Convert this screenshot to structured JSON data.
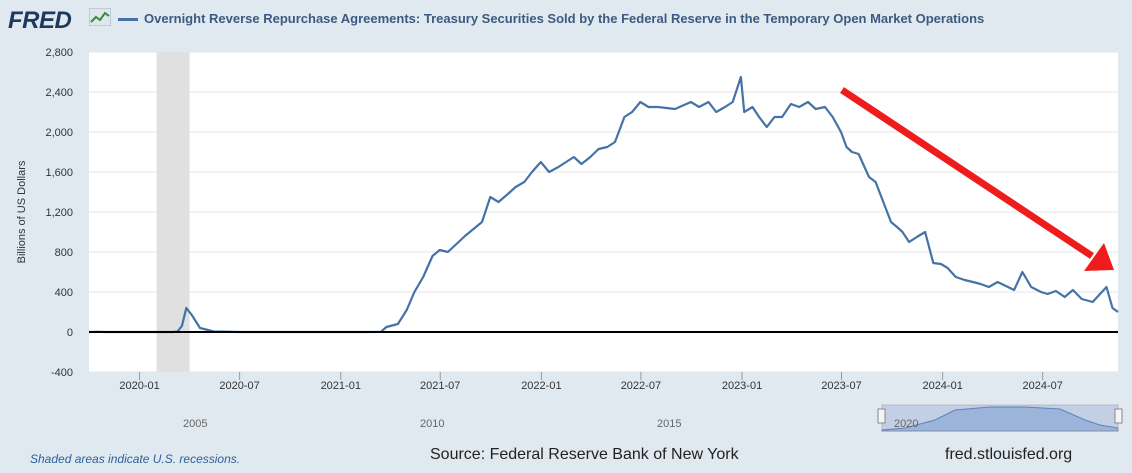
{
  "header": {
    "logo_text": "FRED",
    "title": "Overnight Reverse Repurchase Agreements: Treasury Securities Sold by the Federal Reserve in the Temporary Open Market Operations"
  },
  "footer": {
    "recession_note": "Shaded areas indicate U.S. recessions.",
    "source": "Source: Federal Reserve Bank of New York",
    "url": "fred.stlouisfed.org"
  },
  "navigator": {
    "year_labels": [
      "2005",
      "2010",
      "2015",
      "2020"
    ]
  },
  "colors": {
    "series": "#4572a7",
    "arrow": "#ee1c1c",
    "recession": "#e0e0e0",
    "background": "#e1e9f0",
    "plot_bg": "#ffffff"
  },
  "chart_data": {
    "type": "line",
    "title": "Overnight Reverse Repurchase Agreements: Treasury Securities Sold by the Federal Reserve in the Temporary Open Market Operations",
    "xlabel": "",
    "ylabel": "Billions of US Dollars",
    "ylim": [
      -400,
      2800
    ],
    "yticks": [
      -400,
      0,
      400,
      800,
      1200,
      1600,
      2000,
      2400,
      2800
    ],
    "ytick_labels": [
      "-400",
      "0",
      "400",
      "800",
      "1,200",
      "1,600",
      "2,000",
      "2,400",
      "2,800"
    ],
    "xlim": [
      "2019-10-01",
      "2024-11-15"
    ],
    "xticks": [
      "2020-01-01",
      "2020-07-01",
      "2021-01-01",
      "2021-07-01",
      "2022-01-01",
      "2022-07-01",
      "2023-01-01",
      "2023-07-01",
      "2024-01-01",
      "2024-07-01"
    ],
    "xtick_labels": [
      "2020-01",
      "2020-07",
      "2021-01",
      "2021-07",
      "2022-01",
      "2022-07",
      "2023-01",
      "2023-07",
      "2024-01",
      "2024-07"
    ],
    "recession": {
      "start": "2020-02-01",
      "end": "2020-04-01"
    },
    "grid": true,
    "series": [
      {
        "name": "Overnight Reverse Repurchase Agreements: Treasury Securities Sold by the Federal Reserve in the Temporary Open Market Operations",
        "x": [
          "2019-10-01",
          "2019-10-15",
          "2019-11-01",
          "2019-12-01",
          "2020-01-01",
          "2020-02-01",
          "2020-03-01",
          "2020-03-10",
          "2020-03-18",
          "2020-03-26",
          "2020-04-05",
          "2020-04-20",
          "2020-05-15",
          "2020-07-01",
          "2020-10-01",
          "2021-01-01",
          "2021-02-15",
          "2021-03-15",
          "2021-03-25",
          "2021-04-15",
          "2021-05-01",
          "2021-05-15",
          "2021-05-31",
          "2021-06-17",
          "2021-06-30",
          "2021-07-15",
          "2021-08-15",
          "2021-09-15",
          "2021-09-30",
          "2021-10-15",
          "2021-11-01",
          "2021-11-15",
          "2021-12-01",
          "2021-12-15",
          "2021-12-31",
          "2022-01-15",
          "2022-02-01",
          "2022-02-15",
          "2022-03-01",
          "2022-03-15",
          "2022-03-31",
          "2022-04-15",
          "2022-05-01",
          "2022-05-15",
          "2022-06-01",
          "2022-06-15",
          "2022-06-30",
          "2022-07-15",
          "2022-08-01",
          "2022-09-01",
          "2022-09-30",
          "2022-10-15",
          "2022-11-01",
          "2022-11-15",
          "2022-12-01",
          "2022-12-15",
          "2022-12-30",
          "2023-01-05",
          "2023-01-20",
          "2023-02-01",
          "2023-02-15",
          "2023-03-01",
          "2023-03-15",
          "2023-03-31",
          "2023-04-15",
          "2023-05-01",
          "2023-05-15",
          "2023-06-01",
          "2023-06-15",
          "2023-06-30",
          "2023-07-10",
          "2023-07-20",
          "2023-08-01",
          "2023-08-20",
          "2023-09-01",
          "2023-09-15",
          "2023-09-29",
          "2023-10-10",
          "2023-10-20",
          "2023-11-01",
          "2023-11-15",
          "2023-11-30",
          "2023-12-15",
          "2023-12-29",
          "2024-01-10",
          "2024-01-25",
          "2024-02-10",
          "2024-02-25",
          "2024-03-10",
          "2024-03-25",
          "2024-04-10",
          "2024-04-25",
          "2024-05-10",
          "2024-05-25",
          "2024-06-10",
          "2024-06-28",
          "2024-07-10",
          "2024-07-25",
          "2024-08-10",
          "2024-08-25",
          "2024-09-10",
          "2024-09-30",
          "2024-10-10",
          "2024-10-25",
          "2024-11-05",
          "2024-11-15"
        ],
        "y": [
          0,
          2,
          0,
          0,
          0,
          0,
          0,
          5,
          60,
          240,
          170,
          40,
          5,
          0,
          0,
          0,
          0,
          2,
          50,
          80,
          220,
          400,
          550,
          760,
          820,
          800,
          960,
          1100,
          1350,
          1300,
          1380,
          1450,
          1500,
          1600,
          1700,
          1600,
          1650,
          1700,
          1750,
          1680,
          1750,
          1830,
          1850,
          1900,
          2150,
          2200,
          2300,
          2250,
          2250,
          2230,
          2300,
          2250,
          2300,
          2200,
          2250,
          2300,
          2550,
          2200,
          2250,
          2150,
          2050,
          2150,
          2150,
          2280,
          2250,
          2300,
          2230,
          2250,
          2150,
          2000,
          1850,
          1800,
          1780,
          1550,
          1500,
          1300,
          1100,
          1050,
          1000,
          900,
          950,
          1000,
          690,
          680,
          640,
          550,
          520,
          500,
          480,
          450,
          500,
          460,
          420,
          600,
          450,
          400,
          380,
          410,
          350,
          420,
          330,
          300,
          360,
          450,
          240,
          200
        ]
      }
    ]
  }
}
